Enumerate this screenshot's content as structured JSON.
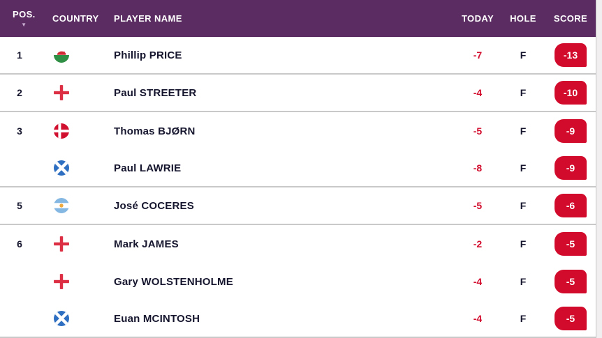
{
  "table": {
    "columns": {
      "pos": "POS.",
      "country": "COUNTRY",
      "player": "PLAYER NAME",
      "today": "TODAY",
      "hole": "HOLE",
      "score": "SCORE"
    },
    "sort": {
      "column": "POS.",
      "direction": "desc"
    },
    "rows": [
      {
        "pos": "1",
        "country": "Wales",
        "flag": "wal",
        "player": "Phillip PRICE",
        "today": "-7",
        "hole": "F",
        "score": "-13",
        "group_end": true
      },
      {
        "pos": "2",
        "country": "England",
        "flag": "eng",
        "player": "Paul STREETER",
        "today": "-4",
        "hole": "F",
        "score": "-10",
        "group_end": true
      },
      {
        "pos": "3",
        "country": "Denmark",
        "flag": "den",
        "player": "Thomas BJØRN",
        "today": "-5",
        "hole": "F",
        "score": "-9",
        "group_end": false
      },
      {
        "pos": "",
        "country": "Scotland",
        "flag": "sco",
        "player": "Paul LAWRIE",
        "today": "-8",
        "hole": "F",
        "score": "-9",
        "group_end": true
      },
      {
        "pos": "5",
        "country": "Argentina",
        "flag": "arg",
        "player": "José COCERES",
        "today": "-5",
        "hole": "F",
        "score": "-6",
        "group_end": true
      },
      {
        "pos": "6",
        "country": "England",
        "flag": "eng",
        "player": "Mark JAMES",
        "today": "-2",
        "hole": "F",
        "score": "-5",
        "group_end": false
      },
      {
        "pos": "",
        "country": "England",
        "flag": "eng",
        "player": "Gary WOLSTENHOLME",
        "today": "-4",
        "hole": "F",
        "score": "-5",
        "group_end": false
      },
      {
        "pos": "",
        "country": "Scotland",
        "flag": "sco",
        "player": "Euan MCINTOSH",
        "today": "-4",
        "hole": "F",
        "score": "-5",
        "group_end": true
      }
    ]
  },
  "icons": {
    "sort_desc": "▼"
  },
  "colors": {
    "header_bg": "#5b2c62",
    "score_badge_bg": "#d20a2b",
    "today_text": "#d20a2b",
    "name_text": "#15152e",
    "divider": "#c9c9c9"
  }
}
